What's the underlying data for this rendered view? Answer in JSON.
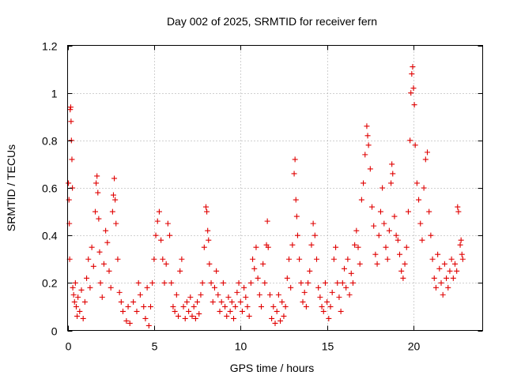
{
  "chart_data": {
    "type": "scatter",
    "title": "Day 002 of 2025, SRMTID for receiver fern",
    "xlabel": "GPS time / hours",
    "ylabel": "SRMTID / TECUs",
    "xlim": [
      0,
      24
    ],
    "ylim": [
      0,
      1.2
    ],
    "xticks": [
      0,
      5,
      10,
      15,
      20
    ],
    "xtick_labels": [
      "0",
      "5",
      "10",
      "15",
      "20"
    ],
    "yticks": [
      0,
      0.2,
      0.4,
      0.6,
      0.8,
      1.0,
      1.2
    ],
    "ytick_labels": [
      "0",
      "0.2",
      "0.4",
      "0.6",
      "0.8",
      "1",
      "1.2"
    ],
    "grid": true,
    "marker": "+",
    "color": "#e00000",
    "series": [
      {
        "name": "SRMTID",
        "points": [
          [
            0.05,
            0.62
          ],
          [
            0.08,
            0.55
          ],
          [
            0.1,
            0.45
          ],
          [
            0.12,
            0.3
          ],
          [
            0.15,
            0.93
          ],
          [
            0.18,
            0.94
          ],
          [
            0.2,
            0.88
          ],
          [
            0.22,
            0.8
          ],
          [
            0.25,
            0.72
          ],
          [
            0.28,
            0.6
          ],
          [
            0.3,
            0.18
          ],
          [
            0.35,
            0.15
          ],
          [
            0.4,
            0.12
          ],
          [
            0.45,
            0.2
          ],
          [
            0.5,
            0.1
          ],
          [
            0.55,
            0.06
          ],
          [
            0.6,
            0.14
          ],
          [
            0.7,
            0.08
          ],
          [
            0.8,
            0.17
          ],
          [
            0.9,
            0.05
          ],
          [
            1.0,
            0.12
          ],
          [
            1.1,
            0.22
          ],
          [
            1.2,
            0.3
          ],
          [
            1.3,
            0.18
          ],
          [
            1.4,
            0.35
          ],
          [
            1.5,
            0.27
          ],
          [
            1.6,
            0.5
          ],
          [
            1.65,
            0.62
          ],
          [
            1.7,
            0.65
          ],
          [
            1.75,
            0.58
          ],
          [
            1.8,
            0.47
          ],
          [
            1.85,
            0.33
          ],
          [
            1.9,
            0.2
          ],
          [
            2.0,
            0.14
          ],
          [
            2.1,
            0.28
          ],
          [
            2.2,
            0.42
          ],
          [
            2.3,
            0.37
          ],
          [
            2.4,
            0.25
          ],
          [
            2.5,
            0.18
          ],
          [
            2.6,
            0.5
          ],
          [
            2.65,
            0.57
          ],
          [
            2.7,
            0.64
          ],
          [
            2.75,
            0.55
          ],
          [
            2.8,
            0.45
          ],
          [
            2.9,
            0.3
          ],
          [
            3.0,
            0.16
          ],
          [
            3.1,
            0.12
          ],
          [
            3.2,
            0.08
          ],
          [
            3.4,
            0.04
          ],
          [
            3.5,
            0.1
          ],
          [
            3.6,
            0.03
          ],
          [
            3.8,
            0.12
          ],
          [
            4.0,
            0.08
          ],
          [
            4.1,
            0.2
          ],
          [
            4.2,
            0.15
          ],
          [
            4.4,
            0.1
          ],
          [
            4.5,
            0.05
          ],
          [
            4.6,
            0.18
          ],
          [
            4.7,
            0.02
          ],
          [
            4.8,
            0.1
          ],
          [
            4.9,
            0.2
          ],
          [
            5.0,
            0.3
          ],
          [
            5.1,
            0.4
          ],
          [
            5.2,
            0.46
          ],
          [
            5.3,
            0.5
          ],
          [
            5.4,
            0.38
          ],
          [
            5.5,
            0.3
          ],
          [
            5.6,
            0.2
          ],
          [
            5.7,
            0.28
          ],
          [
            5.8,
            0.45
          ],
          [
            5.9,
            0.4
          ],
          [
            6.0,
            0.2
          ],
          [
            6.1,
            0.1
          ],
          [
            6.2,
            0.08
          ],
          [
            6.3,
            0.15
          ],
          [
            6.4,
            0.06
          ],
          [
            6.5,
            0.25
          ],
          [
            6.6,
            0.3
          ],
          [
            6.7,
            0.1
          ],
          [
            6.8,
            0.05
          ],
          [
            6.9,
            0.12
          ],
          [
            7.0,
            0.08
          ],
          [
            7.1,
            0.14
          ],
          [
            7.2,
            0.06
          ],
          [
            7.3,
            0.1
          ],
          [
            7.4,
            0.05
          ],
          [
            7.5,
            0.12
          ],
          [
            7.6,
            0.07
          ],
          [
            7.7,
            0.15
          ],
          [
            7.8,
            0.2
          ],
          [
            7.9,
            0.35
          ],
          [
            8.0,
            0.52
          ],
          [
            8.05,
            0.5
          ],
          [
            8.1,
            0.42
          ],
          [
            8.15,
            0.38
          ],
          [
            8.2,
            0.28
          ],
          [
            8.3,
            0.2
          ],
          [
            8.4,
            0.12
          ],
          [
            8.5,
            0.18
          ],
          [
            8.6,
            0.25
          ],
          [
            8.7,
            0.15
          ],
          [
            8.8,
            0.08
          ],
          [
            8.9,
            0.12
          ],
          [
            9.0,
            0.2
          ],
          [
            9.1,
            0.1
          ],
          [
            9.2,
            0.06
          ],
          [
            9.3,
            0.14
          ],
          [
            9.4,
            0.08
          ],
          [
            9.5,
            0.12
          ],
          [
            9.6,
            0.05
          ],
          [
            9.7,
            0.1
          ],
          [
            9.8,
            0.16
          ],
          [
            9.9,
            0.2
          ],
          [
            10.0,
            0.12
          ],
          [
            10.1,
            0.08
          ],
          [
            10.2,
            0.18
          ],
          [
            10.3,
            0.14
          ],
          [
            10.4,
            0.1
          ],
          [
            10.5,
            0.06
          ],
          [
            10.6,
            0.2
          ],
          [
            10.7,
            0.3
          ],
          [
            10.8,
            0.26
          ],
          [
            10.9,
            0.35
          ],
          [
            11.0,
            0.22
          ],
          [
            11.1,
            0.15
          ],
          [
            11.2,
            0.1
          ],
          [
            11.3,
            0.28
          ],
          [
            11.4,
            0.2
          ],
          [
            11.5,
            0.36
          ],
          [
            11.55,
            0.46
          ],
          [
            11.6,
            0.35
          ],
          [
            11.7,
            0.15
          ],
          [
            11.8,
            0.05
          ],
          [
            11.9,
            0.1
          ],
          [
            12.0,
            0.03
          ],
          [
            12.1,
            0.08
          ],
          [
            12.2,
            0.15
          ],
          [
            12.3,
            0.04
          ],
          [
            12.4,
            0.12
          ],
          [
            12.5,
            0.06
          ],
          [
            12.6,
            0.1
          ],
          [
            12.7,
            0.22
          ],
          [
            12.8,
            0.3
          ],
          [
            12.9,
            0.18
          ],
          [
            13.0,
            0.36
          ],
          [
            13.1,
            0.66
          ],
          [
            13.15,
            0.72
          ],
          [
            13.2,
            0.55
          ],
          [
            13.25,
            0.48
          ],
          [
            13.3,
            0.4
          ],
          [
            13.4,
            0.3
          ],
          [
            13.5,
            0.2
          ],
          [
            13.6,
            0.12
          ],
          [
            13.7,
            0.16
          ],
          [
            13.8,
            0.1
          ],
          [
            13.9,
            0.2
          ],
          [
            14.0,
            0.25
          ],
          [
            14.1,
            0.36
          ],
          [
            14.2,
            0.45
          ],
          [
            14.3,
            0.4
          ],
          [
            14.4,
            0.3
          ],
          [
            14.5,
            0.18
          ],
          [
            14.6,
            0.14
          ],
          [
            14.7,
            0.1
          ],
          [
            14.8,
            0.08
          ],
          [
            14.9,
            0.2
          ],
          [
            15.0,
            0.12
          ],
          [
            15.1,
            0.05
          ],
          [
            15.2,
            0.1
          ],
          [
            15.3,
            0.16
          ],
          [
            15.4,
            0.3
          ],
          [
            15.5,
            0.35
          ],
          [
            15.6,
            0.2
          ],
          [
            15.7,
            0.14
          ],
          [
            15.8,
            0.08
          ],
          [
            15.9,
            0.2
          ],
          [
            16.0,
            0.26
          ],
          [
            16.1,
            0.18
          ],
          [
            16.2,
            0.3
          ],
          [
            16.3,
            0.15
          ],
          [
            16.4,
            0.24
          ],
          [
            16.5,
            0.2
          ],
          [
            16.6,
            0.36
          ],
          [
            16.7,
            0.42
          ],
          [
            16.8,
            0.35
          ],
          [
            16.9,
            0.28
          ],
          [
            17.0,
            0.55
          ],
          [
            17.1,
            0.62
          ],
          [
            17.2,
            0.74
          ],
          [
            17.3,
            0.86
          ],
          [
            17.35,
            0.82
          ],
          [
            17.4,
            0.78
          ],
          [
            17.5,
            0.68
          ],
          [
            17.6,
            0.52
          ],
          [
            17.7,
            0.44
          ],
          [
            17.8,
            0.32
          ],
          [
            17.9,
            0.28
          ],
          [
            18.0,
            0.4
          ],
          [
            18.1,
            0.5
          ],
          [
            18.2,
            0.6
          ],
          [
            18.3,
            0.45
          ],
          [
            18.4,
            0.35
          ],
          [
            18.5,
            0.3
          ],
          [
            18.6,
            0.42
          ],
          [
            18.7,
            0.62
          ],
          [
            18.75,
            0.7
          ],
          [
            18.8,
            0.66
          ],
          [
            18.9,
            0.48
          ],
          [
            19.0,
            0.4
          ],
          [
            19.1,
            0.38
          ],
          [
            19.2,
            0.32
          ],
          [
            19.3,
            0.25
          ],
          [
            19.4,
            0.22
          ],
          [
            19.5,
            0.28
          ],
          [
            19.6,
            0.35
          ],
          [
            19.7,
            0.5
          ],
          [
            19.8,
            0.8
          ],
          [
            19.85,
            1.0
          ],
          [
            19.9,
            1.08
          ],
          [
            19.95,
            1.11
          ],
          [
            20.0,
            1.02
          ],
          [
            20.05,
            0.95
          ],
          [
            20.1,
            0.78
          ],
          [
            20.2,
            0.62
          ],
          [
            20.3,
            0.55
          ],
          [
            20.4,
            0.45
          ],
          [
            20.5,
            0.38
          ],
          [
            20.6,
            0.6
          ],
          [
            20.7,
            0.72
          ],
          [
            20.8,
            0.75
          ],
          [
            20.9,
            0.5
          ],
          [
            21.0,
            0.4
          ],
          [
            21.1,
            0.3
          ],
          [
            21.2,
            0.22
          ],
          [
            21.3,
            0.18
          ],
          [
            21.4,
            0.32
          ],
          [
            21.5,
            0.26
          ],
          [
            21.6,
            0.2
          ],
          [
            21.7,
            0.15
          ],
          [
            21.8,
            0.28
          ],
          [
            21.9,
            0.22
          ],
          [
            22.0,
            0.18
          ],
          [
            22.1,
            0.25
          ],
          [
            22.2,
            0.3
          ],
          [
            22.3,
            0.22
          ],
          [
            22.4,
            0.28
          ],
          [
            22.5,
            0.25
          ],
          [
            22.55,
            0.52
          ],
          [
            22.6,
            0.5
          ],
          [
            22.7,
            0.36
          ],
          [
            22.75,
            0.38
          ],
          [
            22.8,
            0.32
          ],
          [
            22.85,
            0.3
          ]
        ]
      }
    ]
  }
}
